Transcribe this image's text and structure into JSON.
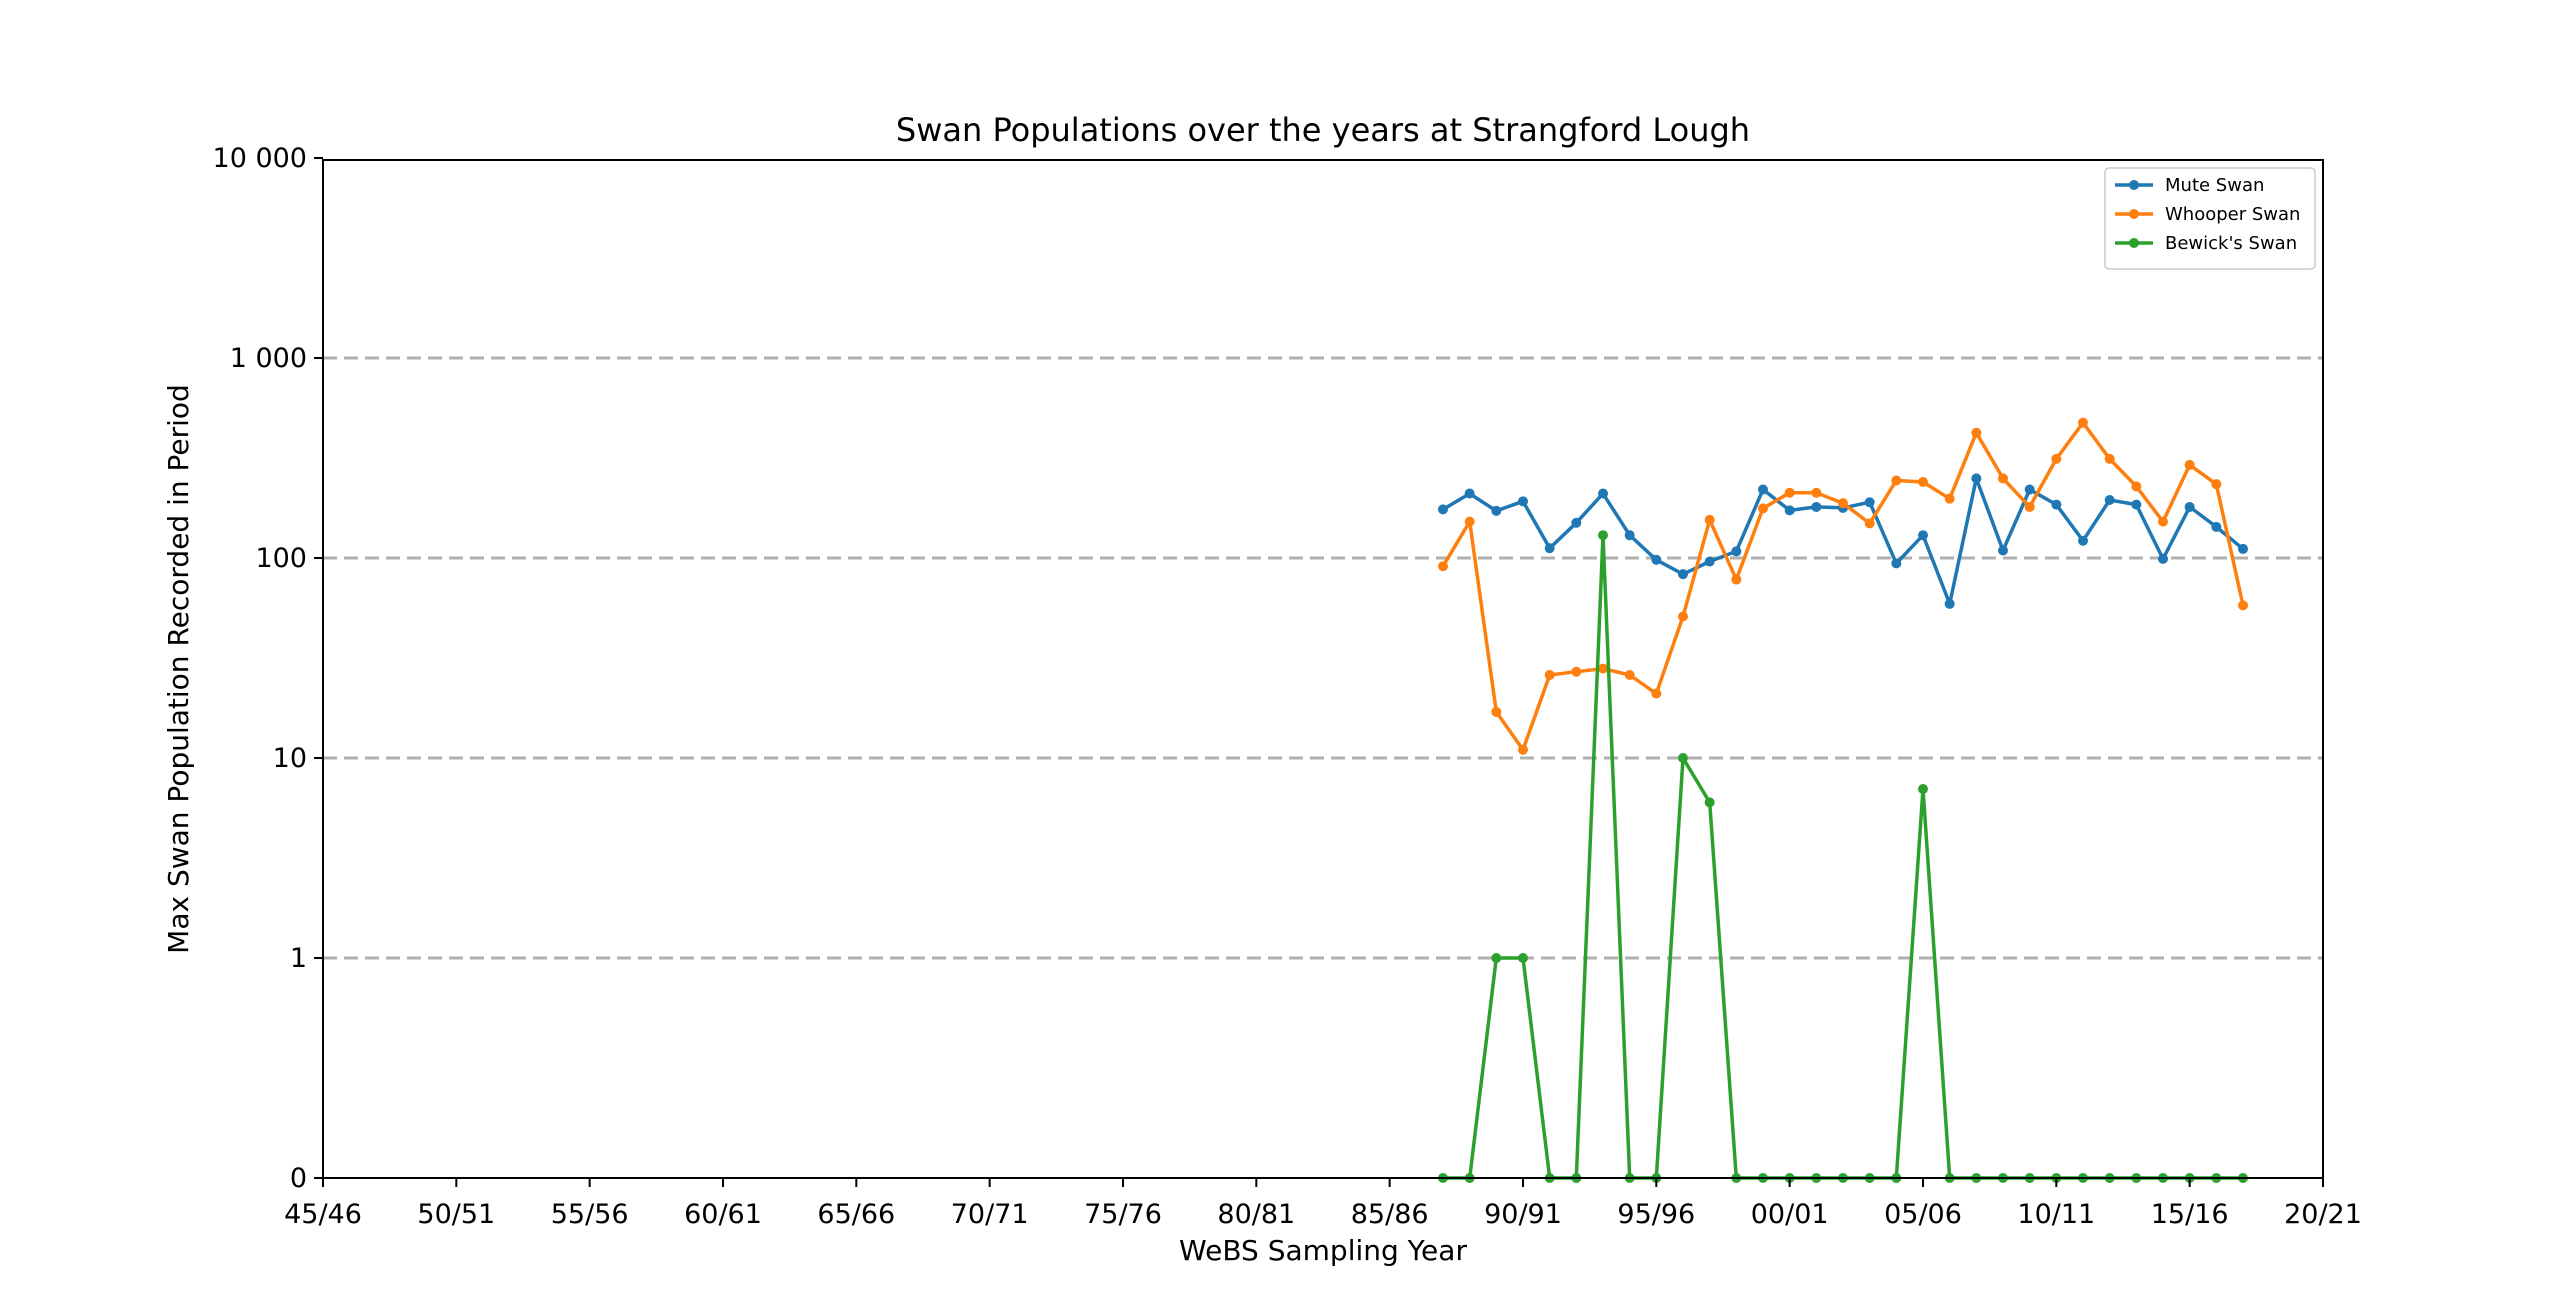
{
  "chart_data": {
    "type": "line",
    "title": "Swan Populations over the years at Strangford Lough",
    "xlabel": "WeBS Sampling Year",
    "ylabel": "Max Swan Population Recorded in Period",
    "yscale": "symlog",
    "ylim": [
      0,
      10000
    ],
    "yticks": [
      0,
      1,
      10,
      100,
      1000,
      10000
    ],
    "ytick_labels": [
      "0",
      "1",
      "10",
      "100",
      "1 000",
      "10 000"
    ],
    "xlim": [
      "45/46",
      "20/21"
    ],
    "xtick_labels": [
      "45/46",
      "50/51",
      "55/56",
      "60/61",
      "65/66",
      "70/71",
      "75/76",
      "80/81",
      "85/86",
      "90/91",
      "95/96",
      "00/01",
      "05/06",
      "10/11",
      "15/16",
      "20/21"
    ],
    "grid": "horizontal dashed",
    "legend_position": "top-right",
    "x": [
      "87/88",
      "88/89",
      "89/90",
      "90/91",
      "91/92",
      "92/93",
      "93/94",
      "94/95",
      "95/96",
      "96/97",
      "97/98",
      "98/99",
      "99/00",
      "00/01",
      "01/02",
      "02/03",
      "03/04",
      "04/05",
      "05/06",
      "06/07",
      "07/08",
      "08/09",
      "09/10",
      "10/11",
      "11/12",
      "12/13",
      "13/14",
      "14/15",
      "15/16",
      "16/17",
      "17/18"
    ],
    "series": [
      {
        "name": "Mute Swan",
        "color": "#1f77b4",
        "values": [
          175,
          210,
          172,
          192,
          112,
          150,
          210,
          130,
          98,
          83,
          96,
          108,
          220,
          173,
          180,
          178,
          190,
          94,
          130,
          59,
          250,
          109,
          220,
          185,
          122,
          195,
          185,
          99,
          180,
          143,
          111
        ]
      },
      {
        "name": "Whooper Swan",
        "color": "#ff7f0e",
        "values": [
          91,
          152,
          17,
          11,
          26,
          27,
          28,
          26,
          21,
          51,
          155,
          78,
          177,
          212,
          212,
          188,
          149,
          244,
          240,
          198,
          423,
          250,
          180,
          313,
          475,
          313,
          228,
          152,
          292,
          234,
          58
        ]
      },
      {
        "name": "Bewick's Swan",
        "color": "#2ca02c",
        "values": [
          0,
          0,
          1,
          1,
          0,
          0,
          130,
          0,
          0,
          10,
          6,
          0,
          0,
          0,
          0,
          0,
          0,
          0,
          7,
          0,
          0,
          0,
          0,
          0,
          0,
          0,
          0,
          0,
          0,
          0,
          0
        ]
      }
    ]
  }
}
